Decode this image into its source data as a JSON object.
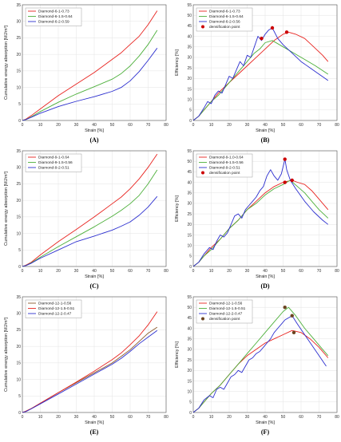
{
  "chart_data": [
    {
      "id": "A",
      "caption": "(A)",
      "type": "line",
      "xlabel": "Strain [%]",
      "ylabel": "Cumulative energy absorption [MJ/m³]",
      "xlim": [
        0,
        80
      ],
      "ylim": [
        0,
        35
      ],
      "xticks": [
        0,
        10,
        20,
        30,
        40,
        50,
        60,
        70,
        80
      ],
      "yticks": [
        0,
        5,
        10,
        15,
        20,
        25,
        30,
        35
      ],
      "legend_position": "top-left",
      "grid": true,
      "series": [
        {
          "name": "Diamond-6-1-0.73",
          "color": "#e8231f",
          "x": [
            0,
            2,
            5,
            10,
            20,
            30,
            40,
            50,
            55,
            60,
            65,
            70,
            75
          ],
          "y": [
            0,
            0.4,
            1.5,
            3.5,
            7.5,
            11,
            14.5,
            18.5,
            20.5,
            23,
            25.5,
            29,
            33.2
          ]
        },
        {
          "name": "Diamond-6-1.5-0.64",
          "color": "#4caf3a",
          "x": [
            0,
            2,
            5,
            10,
            20,
            30,
            40,
            50,
            55,
            60,
            65,
            70,
            75
          ],
          "y": [
            0,
            0.3,
            1.1,
            2.7,
            5.5,
            8,
            10.2,
            12.5,
            14.2,
            16.5,
            19.5,
            23,
            27.3
          ]
        },
        {
          "name": "Diamond-6-2-0.59",
          "color": "#2c2fcf",
          "x": [
            0,
            2,
            5,
            10,
            20,
            30,
            40,
            50,
            55,
            60,
            65,
            70,
            75
          ],
          "y": [
            0,
            0.3,
            1,
            2.2,
            4.2,
            5.8,
            7.2,
            8.8,
            10,
            12,
            14.8,
            18.2,
            21.9
          ]
        }
      ]
    },
    {
      "id": "B",
      "caption": "(B)",
      "type": "line",
      "xlabel": "Strain [%]",
      "ylabel": "Efficiency [%]",
      "xlim": [
        0,
        80
      ],
      "ylim": [
        0,
        55
      ],
      "xticks": [
        0,
        10,
        20,
        30,
        40,
        50,
        60,
        70,
        80
      ],
      "yticks": [
        0,
        5,
        10,
        15,
        20,
        25,
        30,
        35,
        40,
        45,
        50,
        55
      ],
      "legend_position": "top-left",
      "grid": true,
      "series": [
        {
          "name": "Diamond-6-1-0.73",
          "color": "#e8231f",
          "x": [
            0,
            3,
            6,
            10,
            15,
            20,
            25,
            30,
            35,
            40,
            45,
            50,
            53,
            57,
            62,
            67,
            72,
            75
          ],
          "y": [
            0,
            2,
            5,
            9,
            14,
            18,
            22,
            26,
            30,
            34,
            38,
            41,
            42,
            41,
            39,
            35,
            31,
            28
          ]
        },
        {
          "name": "Diamond-6-1.5-0.64",
          "color": "#4caf3a",
          "x": [
            0,
            3,
            6,
            10,
            14,
            18,
            22,
            26,
            30,
            34,
            37,
            40,
            44,
            50,
            56,
            62,
            68,
            75
          ],
          "y": [
            0,
            2,
            5,
            9,
            12,
            16,
            20,
            24,
            28,
            32,
            34,
            37,
            38,
            35,
            32,
            29,
            26,
            22
          ]
        },
        {
          "name": "Diamond-6-2-0.56",
          "color": "#2c2fcf",
          "x": [
            0,
            3,
            6,
            8,
            10,
            12,
            14,
            16,
            18,
            20,
            22,
            24,
            26,
            28,
            30,
            32,
            34,
            36,
            38,
            40,
            42,
            44,
            47,
            50,
            55,
            60,
            65,
            70,
            75
          ],
          "y": [
            0,
            2,
            6,
            9,
            8,
            12,
            14,
            13,
            17,
            21,
            20,
            24,
            28,
            26,
            31,
            30,
            35,
            40,
            38,
            41,
            43,
            44,
            39,
            36,
            32,
            28,
            25,
            22,
            19
          ]
        }
      ],
      "markers": {
        "label": "densification point",
        "color": "#cc0000",
        "points": [
          [
            38,
            39
          ],
          [
            44,
            44
          ],
          [
            52,
            42
          ]
        ]
      }
    },
    {
      "id": "C",
      "caption": "(C)",
      "type": "line",
      "xlabel": "Strain [%]",
      "ylabel": "Cumulative energy absorption [MJ/m³]",
      "xlim": [
        0,
        80
      ],
      "ylim": [
        0,
        35
      ],
      "xticks": [
        0,
        10,
        20,
        30,
        40,
        50,
        60,
        70,
        80
      ],
      "yticks": [
        0,
        5,
        10,
        15,
        20,
        25,
        30,
        35
      ],
      "legend_position": "top-left",
      "grid": true,
      "series": [
        {
          "name": "Diamond-9-1-0.64",
          "color": "#e8231f",
          "x": [
            0,
            2,
            5,
            10,
            20,
            30,
            40,
            50,
            55,
            60,
            65,
            70,
            75
          ],
          "y": [
            0,
            0.4,
            1.3,
            3.5,
            7.5,
            11.2,
            15,
            19,
            21,
            23.5,
            26.5,
            30,
            34
          ]
        },
        {
          "name": "Diamond-9-1.5-0.56",
          "color": "#4caf3a",
          "x": [
            0,
            2,
            5,
            10,
            20,
            30,
            40,
            50,
            55,
            60,
            65,
            70,
            75
          ],
          "y": [
            0,
            0.3,
            1.1,
            2.8,
            6,
            9,
            12,
            15.2,
            17,
            19,
            21.5,
            25,
            29.2
          ]
        },
        {
          "name": "Diamond-9-2-0.51",
          "color": "#2c2fcf",
          "x": [
            0,
            2,
            5,
            10,
            20,
            30,
            40,
            50,
            55,
            60,
            65,
            70,
            75
          ],
          "y": [
            0,
            0.3,
            1,
            2.5,
            5,
            7.5,
            9.2,
            11,
            12.2,
            13.5,
            15.5,
            18,
            21.2
          ]
        }
      ]
    },
    {
      "id": "D",
      "caption": "(D)",
      "type": "line",
      "xlabel": "Strain [%]",
      "ylabel": "Efficiency [%]",
      "xlim": [
        0,
        80
      ],
      "ylim": [
        0,
        55
      ],
      "xticks": [
        0,
        10,
        20,
        30,
        40,
        50,
        60,
        70,
        80
      ],
      "yticks": [
        0,
        5,
        10,
        15,
        20,
        25,
        30,
        35,
        40,
        45,
        50,
        55
      ],
      "legend_position": "top-left",
      "grid": true,
      "series": [
        {
          "name": "Diamond-9-1.0-0.64",
          "color": "#e8231f",
          "x": [
            0,
            3,
            6,
            10,
            15,
            20,
            25,
            30,
            35,
            40,
            45,
            50,
            55,
            58,
            62,
            66,
            70,
            75
          ],
          "y": [
            0,
            2,
            5,
            9,
            13,
            18,
            22,
            27,
            31,
            35,
            38,
            40,
            41,
            40,
            39,
            36,
            32,
            27
          ]
        },
        {
          "name": "Diamond-9-1.5-0.56",
          "color": "#4caf3a",
          "x": [
            0,
            3,
            6,
            10,
            15,
            20,
            25,
            30,
            35,
            40,
            45,
            50,
            54,
            58,
            62,
            66,
            70,
            75
          ],
          "y": [
            0,
            2,
            5,
            8,
            13,
            18,
            22,
            27,
            30,
            34,
            37,
            39,
            41,
            38,
            35,
            31,
            27,
            23
          ]
        },
        {
          "name": "Diamond-9-2-0.51",
          "color": "#2c2fcf",
          "x": [
            0,
            3,
            6,
            9,
            11,
            13,
            15,
            17,
            19,
            21,
            23,
            25,
            27,
            29,
            31,
            33,
            35,
            37,
            39,
            41,
            43,
            45,
            47,
            49,
            51,
            52,
            54,
            57,
            62,
            67,
            72,
            75
          ],
          "y": [
            0,
            2,
            6,
            9,
            8,
            12,
            15,
            14,
            16,
            20,
            24,
            25,
            23,
            27,
            29,
            31,
            33,
            36,
            38,
            43,
            46,
            43,
            41,
            44,
            51,
            46,
            41,
            37,
            31,
            26,
            22,
            20
          ]
        }
      ],
      "markers": {
        "label": "densification point",
        "color": "#cc0000",
        "points": [
          [
            51,
            51
          ],
          [
            51,
            40
          ],
          [
            55,
            41
          ]
        ]
      }
    },
    {
      "id": "E",
      "caption": "(E)",
      "type": "line",
      "xlabel": "Strain [%]",
      "ylabel": "Cumulative energy absorption [MJ/m³]",
      "xlim": [
        0,
        80
      ],
      "ylim": [
        0,
        35
      ],
      "xticks": [
        0,
        10,
        20,
        30,
        40,
        50,
        60,
        70,
        80
      ],
      "yticks": [
        0,
        5,
        10,
        15,
        20,
        25,
        30,
        35
      ],
      "legend_position": "top-left",
      "grid": true,
      "series": [
        {
          "name": "Diamond-12-1-0.56",
          "color": "#8b5a2b",
          "x": [
            0,
            2,
            5,
            10,
            20,
            30,
            40,
            50,
            55,
            60,
            65,
            70,
            75
          ],
          "y": [
            0,
            0.4,
            1.2,
            2.8,
            6,
            9,
            12,
            15,
            17,
            19,
            21.5,
            24,
            25.8
          ]
        },
        {
          "name": "Diamond-12-1.5-0.51",
          "color": "#e8231f",
          "x": [
            0,
            2,
            5,
            10,
            20,
            30,
            40,
            50,
            55,
            60,
            65,
            70,
            75
          ],
          "y": [
            0,
            0.4,
            1.2,
            2.8,
            6,
            9.2,
            12.5,
            16,
            18,
            20.5,
            23.2,
            26.5,
            30.5
          ]
        },
        {
          "name": "Diamond-12-2-0.47",
          "color": "#2c2fcf",
          "x": [
            0,
            2,
            5,
            10,
            20,
            30,
            40,
            50,
            55,
            60,
            65,
            70,
            75
          ],
          "y": [
            0,
            0.3,
            1.1,
            2.6,
            5.6,
            8.6,
            11.6,
            14.6,
            16.4,
            18.5,
            20.8,
            22.8,
            24.8
          ]
        }
      ]
    },
    {
      "id": "F",
      "caption": "(F)",
      "type": "line",
      "xlabel": "Strain [%]",
      "ylabel": "Efficiency [%]",
      "xlim": [
        0,
        80
      ],
      "ylim": [
        0,
        55
      ],
      "xticks": [
        0,
        10,
        20,
        30,
        40,
        50,
        60,
        70,
        80
      ],
      "yticks": [
        0,
        5,
        10,
        15,
        20,
        25,
        30,
        35,
        40,
        45,
        50,
        55
      ],
      "legend_position": "top-left",
      "grid": true,
      "series": [
        {
          "name": "Diamond-12-1-0.56",
          "color": "#e8231f",
          "x": [
            0,
            3,
            6,
            10,
            15,
            20,
            25,
            30,
            35,
            40,
            45,
            50,
            55,
            60,
            65,
            70,
            75
          ],
          "y": [
            0,
            2,
            5,
            9,
            13,
            18,
            23,
            27,
            30,
            33,
            35,
            37,
            39,
            38,
            35,
            31,
            26
          ]
        },
        {
          "name": "Diamond-12-1.5-0.51",
          "color": "#4caf3a",
          "x": [
            0,
            3,
            6,
            10,
            15,
            20,
            25,
            30,
            35,
            40,
            45,
            50,
            53,
            57,
            62,
            67,
            72,
            75
          ],
          "y": [
            0,
            2,
            5,
            9,
            13,
            18,
            23,
            28,
            33,
            38,
            43,
            48,
            50,
            46,
            40,
            35,
            30,
            27
          ]
        },
        {
          "name": "Diamond-12-2-0.47",
          "color": "#2c2fcf",
          "x": [
            0,
            3,
            6,
            9,
            11,
            13,
            15,
            17,
            19,
            21,
            23,
            25,
            27,
            29,
            31,
            33,
            35,
            37,
            39,
            41,
            43,
            45,
            47,
            49,
            51,
            53,
            55,
            58,
            62,
            66,
            70,
            74
          ],
          "y": [
            0,
            2,
            6,
            8,
            7,
            11,
            12,
            11,
            14,
            17,
            18,
            20,
            19,
            22,
            25,
            26,
            28,
            29,
            31,
            33,
            35,
            38,
            40,
            42,
            44,
            45,
            46,
            42,
            37,
            32,
            27,
            22
          ]
        }
      ],
      "markers": {
        "label": "densification point",
        "color": "#6b4420",
        "points": [
          [
            51,
            50
          ],
          [
            55,
            46
          ],
          [
            56,
            38
          ]
        ]
      }
    }
  ]
}
